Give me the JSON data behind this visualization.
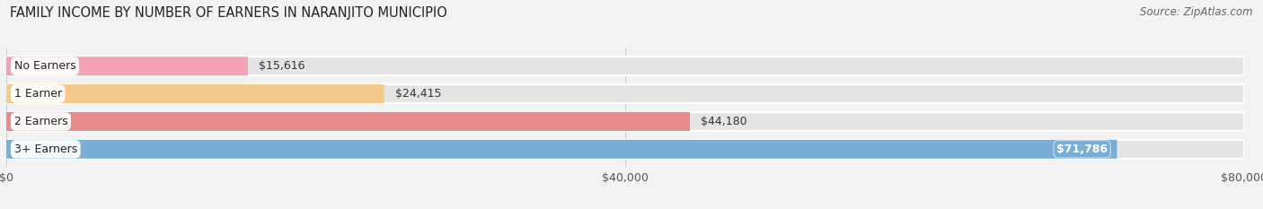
{
  "title": "FAMILY INCOME BY NUMBER OF EARNERS IN NARANJITO MUNICIPIO",
  "source": "Source: ZipAtlas.com",
  "categories": [
    "No Earners",
    "1 Earner",
    "2 Earners",
    "3+ Earners"
  ],
  "values": [
    15616,
    24415,
    44180,
    71786
  ],
  "bar_colors": [
    "#f4a0b5",
    "#f5c98a",
    "#e88a8a",
    "#7aaed6"
  ],
  "label_colors": [
    "#333333",
    "#333333",
    "#333333",
    "#ffffff"
  ],
  "bar_labels": [
    "$15,616",
    "$24,415",
    "$44,180",
    "$71,786"
  ],
  "value_inside": [
    false,
    false,
    false,
    true
  ],
  "xmax": 80000,
  "xticks": [
    0,
    40000,
    80000
  ],
  "xticklabels": [
    "$0",
    "$40,000",
    "$80,000"
  ],
  "bg_color": "#f2f2f2",
  "bar_bg_color": "#e4e4e4",
  "title_fontsize": 10.5,
  "source_fontsize": 8.5,
  "label_fontsize": 9,
  "tick_fontsize": 9,
  "bar_height": 0.68,
  "figsize": [
    14.06,
    2.33
  ]
}
